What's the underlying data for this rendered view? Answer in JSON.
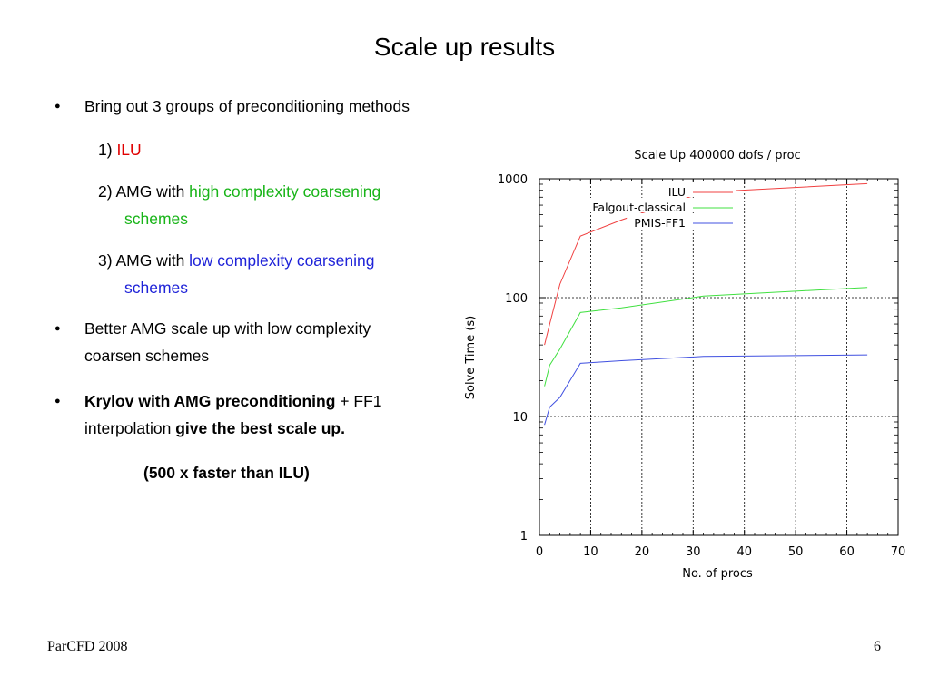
{
  "slide": {
    "title": "Scale up results",
    "bullet1": "Bring out 3 groups of preconditioning methods",
    "item1_prefix": "1) ",
    "item1_name": "ILU",
    "item2_prefix": "2) AMG with ",
    "item2_colored": "high complexity  coarsening",
    "item2_cont": "schemes",
    "item3_prefix": "3) AMG with ",
    "item3_colored": "low complexity coarsening",
    "item3_cont": "schemes",
    "bullet2_line1": "Better AMG scale up with low complexity",
    "bullet2_line2": "coarsen schemes",
    "bullet3_bold1": "Krylov with AMG preconditioning",
    "bullet3_plain1": " + FF1",
    "bullet3_plain2": "interpolation ",
    "bullet3_bold2": "give the best scale up.",
    "note": "(500 x faster than ILU)",
    "bullet_glyph": "●",
    "footer_left": "ParCFD 2008",
    "page_number": "6"
  },
  "colors": {
    "ilu": "#e00000",
    "high_complexity": "#18b418",
    "low_complexity": "#1f23d8",
    "series_ilu": "#f04040",
    "series_falgout": "#40e040",
    "series_pmis": "#4050e0"
  },
  "chart_data": {
    "type": "line",
    "title": "Scale Up 400000 dofs / proc",
    "xlabel": "No. of procs",
    "ylabel": "Solve Time (s)",
    "xlim": [
      0,
      70
    ],
    "ylim": [
      1,
      1000
    ],
    "y_scale": "log",
    "grid": "vertical lines at x=10..60, horizontal lines at y=10 and y=100",
    "legend_position": "top-right",
    "x_ticks": [
      "0",
      "10",
      "20",
      "30",
      "40",
      "50",
      "60",
      "70"
    ],
    "y_ticks": [
      "1",
      "10",
      "100",
      "1000"
    ],
    "series": [
      {
        "name": "ILU",
        "x": [
          1,
          2,
          4,
          8,
          16,
          32,
          64
        ],
        "y": [
          40,
          60,
          130,
          330,
          450,
          770,
          910
        ]
      },
      {
        "name": "Falgout-classical",
        "x": [
          1,
          2,
          4,
          8,
          16,
          32,
          64
        ],
        "y": [
          18,
          27,
          37,
          75,
          82,
          103,
          122
        ]
      },
      {
        "name": "PMIS-FF1",
        "x": [
          1,
          2,
          4,
          8,
          16,
          32,
          64
        ],
        "y": [
          8.5,
          12,
          14.5,
          28,
          29.5,
          32,
          33
        ]
      }
    ]
  }
}
